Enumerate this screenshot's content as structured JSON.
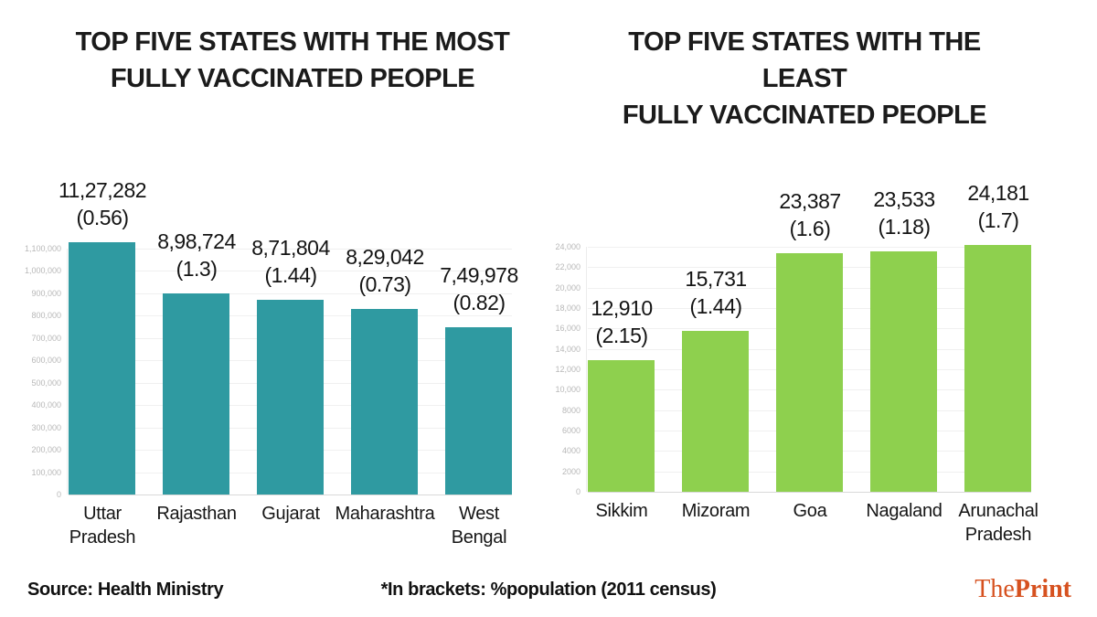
{
  "chart_data": [
    {
      "type": "bar",
      "title": "TOP FIVE STATES WITH THE MOST FULLY VACCINATED PEOPLE",
      "title_lines": [
        "TOP FIVE STATES WITH THE MOST",
        "FULLY VACCINATED PEOPLE"
      ],
      "categories": [
        "Uttar\nPradesh",
        "Rajasthan",
        "Gujarat",
        "Maharashtra",
        "West\nBengal"
      ],
      "values": [
        1127282,
        898724,
        871804,
        829042,
        749978
      ],
      "value_labels": [
        "11,27,282",
        "8,98,724",
        "8,71,804",
        "8,29,042",
        "7,49,978"
      ],
      "pct_labels": [
        "(0.56)",
        "(1.3)",
        "(1.44)",
        "(0.73)",
        "(0.82)"
      ],
      "bar_color": "#2f9aa1",
      "xlabel": "",
      "ylabel": "",
      "ylim": [
        0,
        1100000
      ],
      "yticks": [
        0,
        100000,
        200000,
        300000,
        400000,
        500000,
        600000,
        700000,
        800000,
        900000,
        1000000,
        1100000
      ],
      "ytick_labels": [
        "0",
        "100,000",
        "200,000",
        "300,000",
        "400,000",
        "500,000",
        "600,000",
        "700,000",
        "800,000",
        "900,000",
        "1,000,000",
        "1,100,000"
      ],
      "grid": true,
      "legend": "none"
    },
    {
      "type": "bar",
      "title": "TOP FIVE STATES WITH THE LEAST FULLY VACCINATED PEOPLE",
      "title_lines": [
        "TOP FIVE STATES WITH THE LEAST",
        "FULLY VACCINATED PEOPLE"
      ],
      "categories": [
        "Sikkim",
        "Mizoram",
        "Goa",
        "Nagaland",
        "Arunachal\nPradesh"
      ],
      "values": [
        12910,
        15731,
        23387,
        23533,
        24181
      ],
      "value_labels": [
        "12,910",
        "15,731",
        "23,387",
        "23,533",
        "24,181"
      ],
      "pct_labels": [
        "(2.15)",
        "(1.44)",
        "(1.6)",
        "(1.18)",
        "(1.7)"
      ],
      "bar_color": "#8ed04e",
      "xlabel": "",
      "ylabel": "",
      "ylim": [
        0,
        24000
      ],
      "yticks": [
        0,
        2000,
        4000,
        6000,
        8000,
        10000,
        12000,
        14000,
        16000,
        18000,
        20000,
        22000,
        24000
      ],
      "ytick_labels": [
        "0",
        "2000",
        "4000",
        "6000",
        "8000",
        "10,000",
        "12,000",
        "14,000",
        "16,000",
        "18,000",
        "20,000",
        "22,000",
        "24,000"
      ],
      "grid": true,
      "legend": "none"
    }
  ],
  "footer": {
    "source": "Source: Health Ministry",
    "note": "*In brackets: %population (2011 census)",
    "brand": {
      "part1": "The",
      "part2": "Print",
      "color": "#d6511f"
    }
  },
  "colors": {
    "teal_bar": "#2f9aa1",
    "green_bar": "#8ed04e",
    "title_text": "#1b1b1b",
    "tick_text": "#b8b8b8",
    "gridline": "#f0f0f0",
    "brand_orange": "#d6511f"
  }
}
